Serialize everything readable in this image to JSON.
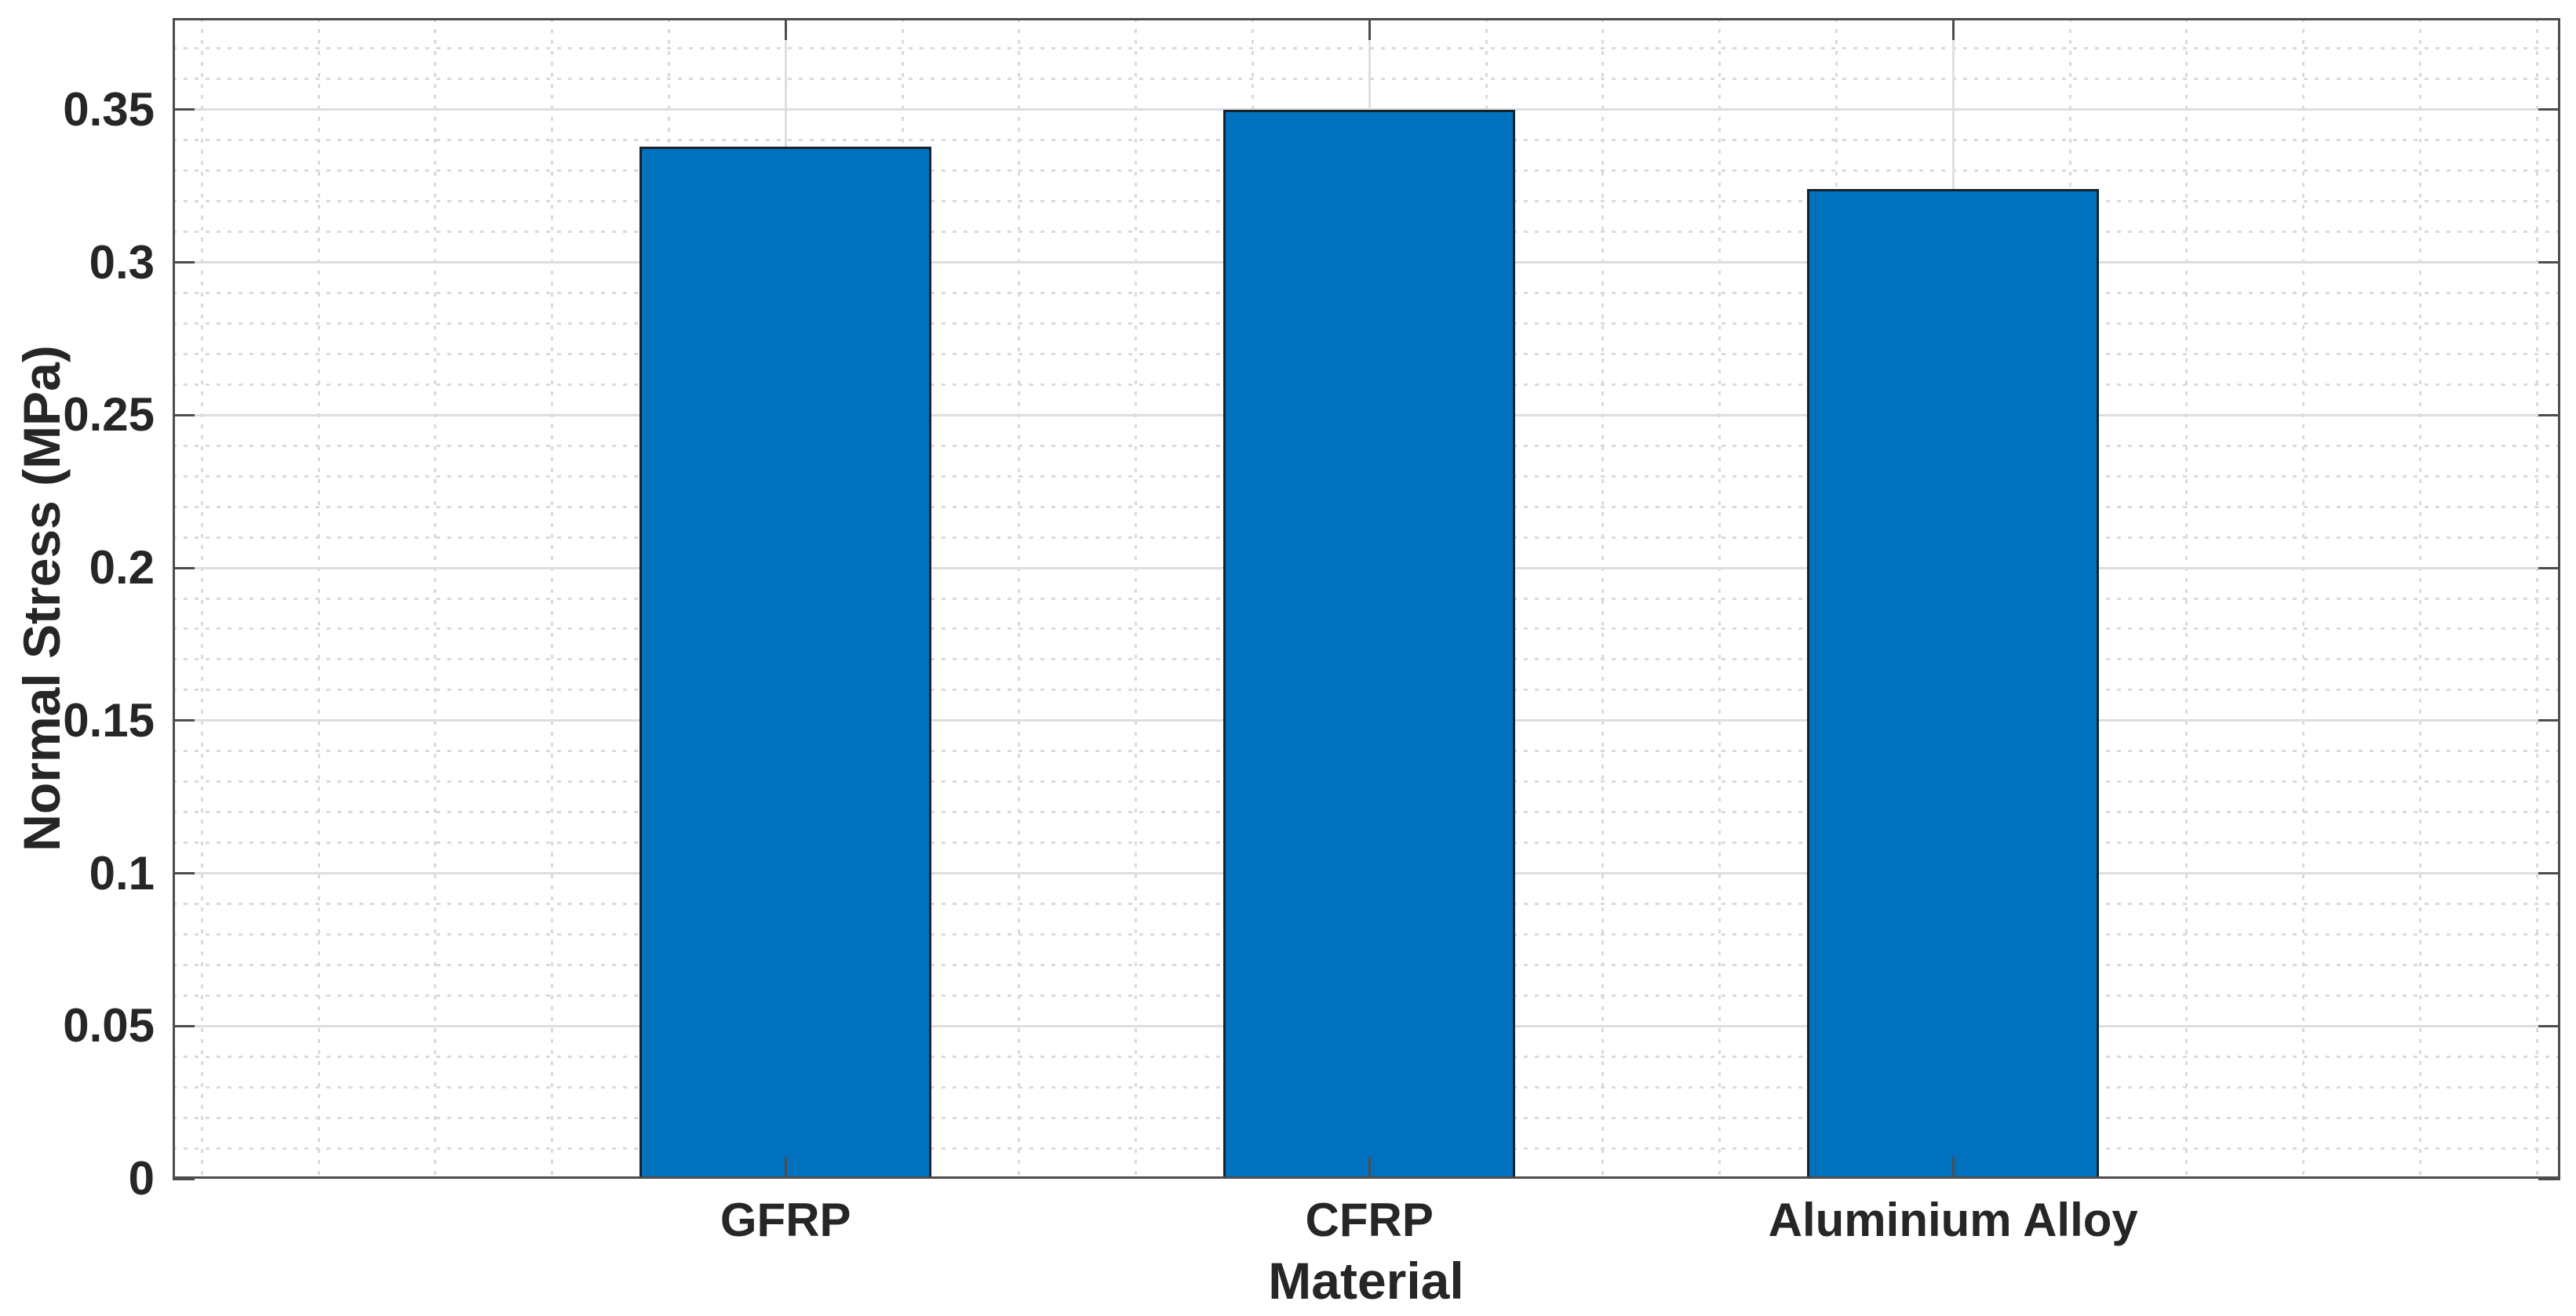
{
  "figure": {
    "background": "#FFFFFF"
  },
  "chart_data": {
    "type": "bar",
    "title": "",
    "categories": [
      "GFRP",
      "CFRP",
      "Aluminium Alloy"
    ],
    "values": [
      0.338,
      0.35,
      0.324
    ],
    "x_positions": [
      1,
      2,
      3
    ],
    "xlabel": "Material",
    "ylabel": "Normal Stress (MPa)",
    "xlim": [
      -0.05,
      4.04
    ],
    "ylim": [
      0,
      0.38
    ],
    "yticks": [
      0,
      0.05,
      0.1,
      0.15,
      0.2,
      0.25,
      0.3,
      0.35
    ],
    "ytick_labels": [
      "0",
      "0.05",
      "0.1",
      "0.15",
      "0.2",
      "0.25",
      "0.3",
      "0.35"
    ],
    "y_minor_step": 0.01,
    "x_minor_step": 0.2,
    "bar_width": 0.5,
    "grid": {
      "major": true,
      "minor": true
    },
    "legend": "none",
    "colors": {
      "bar_fill": "#0072BD",
      "bar_edge": "#16222C",
      "axis": "#4D4D4D",
      "text": "#262626",
      "grid_major": "#DEDEDE",
      "grid_minor": "#DADADA",
      "background": "#FFFFFF"
    }
  }
}
